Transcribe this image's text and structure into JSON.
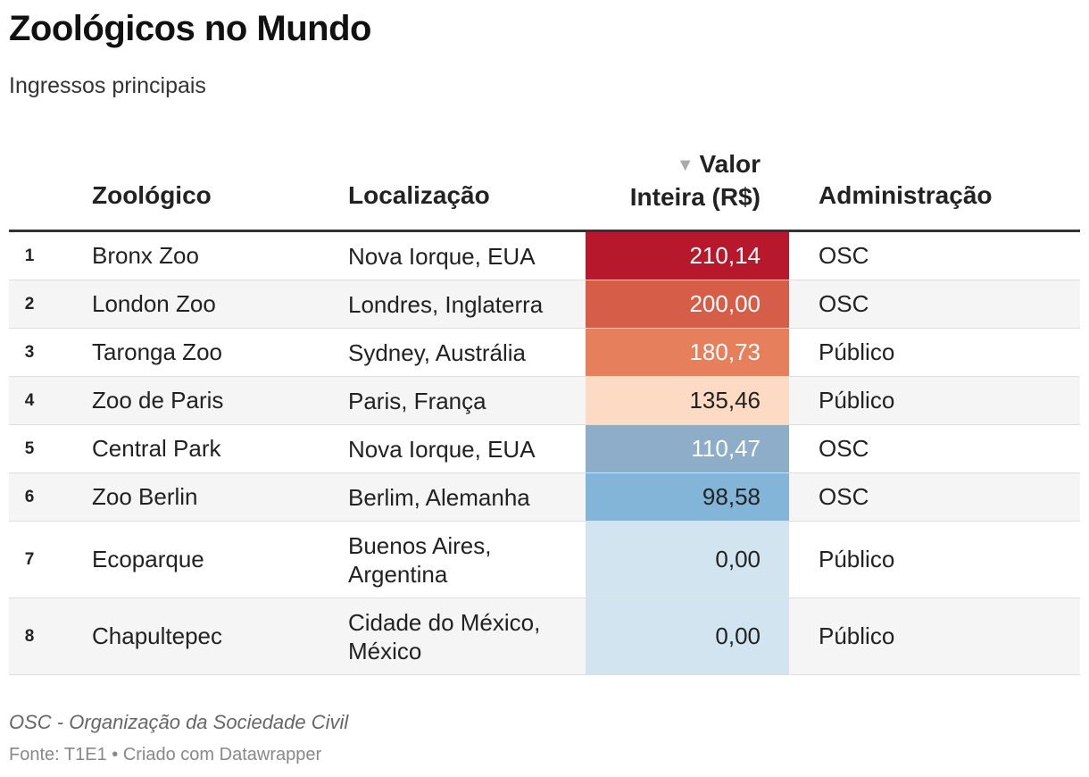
{
  "title": "Zoológicos no Mundo",
  "subtitle": "Ingressos principais",
  "columns": {
    "zoo": "Zoológico",
    "location": "Localização",
    "value_line1": "Valor",
    "value_line2": "Inteira (R$)",
    "admin": "Administração"
  },
  "sort_icon": "sort-descending-icon",
  "colors": {
    "text_dark": "#222222",
    "text_light": "#ffffff"
  },
  "chart_data": {
    "type": "table",
    "title": "Zoológicos no Mundo",
    "subtitle": "Ingressos principais",
    "sorted_by": "Valor Inteira (R$)",
    "sort_order": "descending",
    "rows": [
      {
        "rank": "1",
        "zoo": "Bronx Zoo",
        "location": "Nova Iorque, EUA",
        "value": "210,14",
        "value_num": 210.14,
        "admin": "OSC",
        "color": "#b7182b"
      },
      {
        "rank": "2",
        "zoo": "London Zoo",
        "location": "Londres, Inglaterra",
        "value": "200,00",
        "value_num": 200.0,
        "admin": "OSC",
        "color": "#d65d48"
      },
      {
        "rank": "3",
        "zoo": "Taronga Zoo",
        "location": "Sydney, Austrália",
        "value": "180,73",
        "value_num": 180.73,
        "admin": "Público",
        "color": "#e67f5b"
      },
      {
        "rank": "4",
        "zoo": "Zoo de Paris",
        "location": "Paris, França",
        "value": "135,46",
        "value_num": 135.46,
        "admin": "Público",
        "color": "#fcdac4"
      },
      {
        "rank": "5",
        "zoo": "Central Park",
        "location": "Nova Iorque, EUA",
        "value": "110,47",
        "value_num": 110.47,
        "admin": "OSC",
        "color": "#8dadc8"
      },
      {
        "rank": "6",
        "zoo": "Zoo Berlin",
        "location": "Berlim, Alemanha",
        "value": "98,58",
        "value_num": 98.58,
        "admin": "OSC",
        "color": "#82b5d8"
      },
      {
        "rank": "7",
        "zoo": "Ecoparque",
        "location": "Buenos Aires, Argentina",
        "value": "0,00",
        "value_num": 0.0,
        "admin": "Público",
        "color": "#d1e4ef"
      },
      {
        "rank": "8",
        "zoo": "Chapultepec",
        "location": "Cidade do México, México",
        "value": "0,00",
        "value_num": 0.0,
        "admin": "Público",
        "color": "#d1e4ef"
      }
    ]
  },
  "footnote": "OSC - Organização da Sociedade Civil",
  "source": "Fonte: T1E1 • Criado com Datawrapper"
}
